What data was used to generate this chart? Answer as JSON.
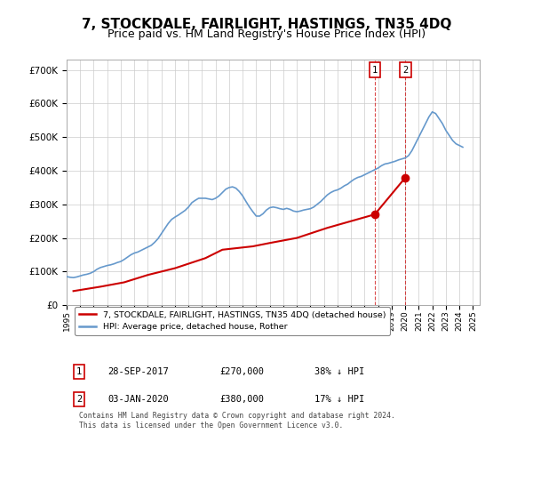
{
  "title": "7, STOCKDALE, FAIRLIGHT, HASTINGS, TN35 4DQ",
  "subtitle": "Price paid vs. HM Land Registry's House Price Index (HPI)",
  "title_fontsize": 11,
  "subtitle_fontsize": 9,
  "ylabel_ticks": [
    "£0",
    "£100K",
    "£200K",
    "£300K",
    "£400K",
    "£500K",
    "£600K",
    "£700K"
  ],
  "ytick_values": [
    0,
    100000,
    200000,
    300000,
    400000,
    500000,
    600000,
    700000
  ],
  "ylim": [
    0,
    730000
  ],
  "xlim_start": 1995.0,
  "xlim_end": 2025.5,
  "transaction1": {
    "date_x": 2017.75,
    "price": 270000,
    "label": "1"
  },
  "transaction2": {
    "date_x": 2020.02,
    "price": 380000,
    "label": "2"
  },
  "legend_house": "7, STOCKDALE, FAIRLIGHT, HASTINGS, TN35 4DQ (detached house)",
  "legend_hpi": "HPI: Average price, detached house, Rother",
  "note1_label": "1",
  "note1_date": "28-SEP-2017",
  "note1_price": "£270,000",
  "note1_pct": "38% ↓ HPI",
  "note2_label": "2",
  "note2_date": "03-JAN-2020",
  "note2_price": "£380,000",
  "note2_pct": "17% ↓ HPI",
  "footer": "Contains HM Land Registry data © Crown copyright and database right 2024.\nThis data is licensed under the Open Government Licence v3.0.",
  "house_color": "#cc0000",
  "hpi_color": "#6699cc",
  "marker_dashed_color": "#cc0000",
  "grid_color": "#cccccc",
  "background_color": "#ffffff",
  "hpi_data_x": [
    1995.0,
    1995.25,
    1995.5,
    1995.75,
    1996.0,
    1996.25,
    1996.5,
    1996.75,
    1997.0,
    1997.25,
    1997.5,
    1997.75,
    1998.0,
    1998.25,
    1998.5,
    1998.75,
    1999.0,
    1999.25,
    1999.5,
    1999.75,
    2000.0,
    2000.25,
    2000.5,
    2000.75,
    2001.0,
    2001.25,
    2001.5,
    2001.75,
    2002.0,
    2002.25,
    2002.5,
    2002.75,
    2003.0,
    2003.25,
    2003.5,
    2003.75,
    2004.0,
    2004.25,
    2004.5,
    2004.75,
    2005.0,
    2005.25,
    2005.5,
    2005.75,
    2006.0,
    2006.25,
    2006.5,
    2006.75,
    2007.0,
    2007.25,
    2007.5,
    2007.75,
    2008.0,
    2008.25,
    2008.5,
    2008.75,
    2009.0,
    2009.25,
    2009.5,
    2009.75,
    2010.0,
    2010.25,
    2010.5,
    2010.75,
    2011.0,
    2011.25,
    2011.5,
    2011.75,
    2012.0,
    2012.25,
    2012.5,
    2012.75,
    2013.0,
    2013.25,
    2013.5,
    2013.75,
    2014.0,
    2014.25,
    2014.5,
    2014.75,
    2015.0,
    2015.25,
    2015.5,
    2015.75,
    2016.0,
    2016.25,
    2016.5,
    2016.75,
    2017.0,
    2017.25,
    2017.5,
    2017.75,
    2018.0,
    2018.25,
    2018.5,
    2018.75,
    2019.0,
    2019.25,
    2019.5,
    2019.75,
    2020.0,
    2020.25,
    2020.5,
    2020.75,
    2021.0,
    2021.25,
    2021.5,
    2021.75,
    2022.0,
    2022.25,
    2022.5,
    2022.75,
    2023.0,
    2023.25,
    2023.5,
    2023.75,
    2024.0,
    2024.25
  ],
  "hpi_data_y": [
    85000,
    83000,
    82000,
    84000,
    87000,
    90000,
    92000,
    95000,
    100000,
    107000,
    112000,
    115000,
    118000,
    120000,
    123000,
    127000,
    130000,
    136000,
    143000,
    150000,
    155000,
    158000,
    163000,
    168000,
    173000,
    178000,
    187000,
    198000,
    213000,
    228000,
    243000,
    255000,
    262000,
    268000,
    275000,
    282000,
    292000,
    305000,
    312000,
    318000,
    318000,
    318000,
    316000,
    314000,
    318000,
    325000,
    335000,
    345000,
    350000,
    352000,
    348000,
    338000,
    325000,
    308000,
    292000,
    278000,
    265000,
    265000,
    272000,
    283000,
    290000,
    292000,
    290000,
    287000,
    285000,
    288000,
    285000,
    280000,
    278000,
    280000,
    283000,
    285000,
    287000,
    292000,
    300000,
    308000,
    318000,
    328000,
    335000,
    340000,
    343000,
    348000,
    355000,
    360000,
    368000,
    375000,
    380000,
    383000,
    388000,
    393000,
    398000,
    403000,
    408000,
    415000,
    420000,
    422000,
    425000,
    428000,
    432000,
    435000,
    438000,
    445000,
    460000,
    480000,
    500000,
    520000,
    540000,
    560000,
    575000,
    570000,
    555000,
    540000,
    520000,
    505000,
    490000,
    480000,
    475000,
    470000
  ],
  "house_data_x": [
    1995.5,
    1997.5,
    1999.25,
    2001.0,
    2003.0,
    2005.25,
    2006.5,
    2008.75,
    2010.0,
    2012.0,
    2014.25,
    2017.75,
    2020.02
  ],
  "house_data_y": [
    42000,
    55000,
    68000,
    90000,
    110000,
    140000,
    165000,
    175000,
    185000,
    200000,
    230000,
    270000,
    380000
  ]
}
